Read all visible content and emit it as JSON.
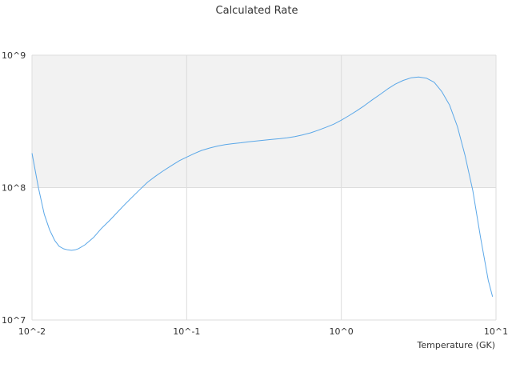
{
  "chart_data": {
    "type": "line",
    "title": "Calculated Rate",
    "xlabel": "Temperature (GK)",
    "ylabel": "",
    "x_scale": "log",
    "y_scale": "log",
    "xlim": [
      0.01,
      10
    ],
    "ylim": [
      10000000,
      1000000000
    ],
    "x_ticks": [
      {
        "value": 0.01,
        "label": "10^-2"
      },
      {
        "value": 0.1,
        "label": "10^-1"
      },
      {
        "value": 1,
        "label": "10^0"
      },
      {
        "value": 10,
        "label": "10^1"
      }
    ],
    "y_ticks": [
      {
        "value": 10000000,
        "label": "10^7"
      },
      {
        "value": 100000000,
        "label": "10^8"
      },
      {
        "value": 1000000000,
        "label": "10^9"
      }
    ],
    "band": {
      "from": 100000000,
      "to": 1000000000,
      "color": "#f2f2f2"
    },
    "grid": true,
    "colors": {
      "series": "#5aa7e8",
      "grid": "#dddddd",
      "band": "#f2f2f2",
      "text": "#333333"
    },
    "series": [
      {
        "x": [
          0.01,
          0.011,
          0.012,
          0.013,
          0.014,
          0.015,
          0.016,
          0.017,
          0.018,
          0.019,
          0.02,
          0.022,
          0.025,
          0.028,
          0.032,
          0.036,
          0.04,
          0.045,
          0.05,
          0.056,
          0.063,
          0.07,
          0.08,
          0.09,
          0.1,
          0.112,
          0.125,
          0.141,
          0.158,
          0.178,
          0.2,
          0.224,
          0.251,
          0.282,
          0.316,
          0.355,
          0.398,
          0.447,
          0.501,
          0.562,
          0.631,
          0.708,
          0.794,
          0.891,
          1.0,
          1.122,
          1.259,
          1.413,
          1.585,
          1.778,
          1.995,
          2.239,
          2.512,
          2.818,
          3.162,
          3.548,
          3.981,
          4.467,
          5.012,
          5.623,
          6.31,
          7.079,
          7.943,
          8.913,
          9.5
        ],
        "y": [
          182000000,
          100000000,
          63000000,
          48000000,
          40000000,
          36000000,
          34500000,
          33900000,
          33600000,
          33900000,
          34600000,
          37000000,
          42000000,
          49000000,
          57000000,
          66000000,
          75000000,
          86000000,
          97000000,
          110000000,
          122000000,
          133000000,
          147000000,
          160000000,
          170000000,
          181000000,
          191000000,
          199000000,
          206000000,
          211000000,
          215000000,
          218000000,
          222000000,
          225000000,
          228000000,
          231000000,
          234000000,
          238000000,
          243000000,
          250000000,
          259000000,
          271000000,
          285000000,
          301000000,
          323000000,
          350000000,
          381000000,
          417000000,
          460000000,
          505000000,
          557000000,
          605000000,
          645000000,
          675000000,
          685000000,
          671000000,
          625000000,
          530000000,
          420000000,
          290000000,
          175000000,
          95000000,
          42000000,
          20000000,
          15000000
        ]
      }
    ]
  }
}
